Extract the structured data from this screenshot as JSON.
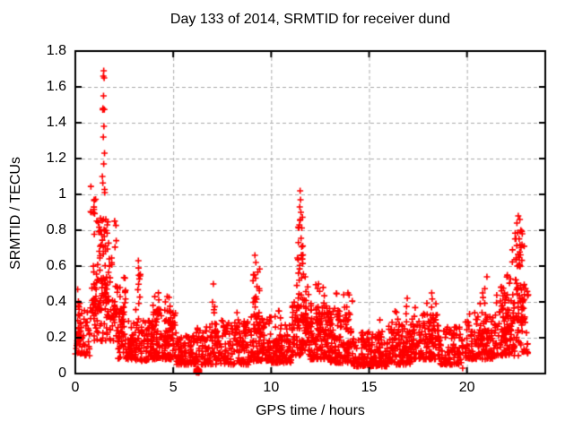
{
  "chart_data": {
    "type": "scatter",
    "title": "Day 133 of 2014, SRMTID for receiver dund",
    "xlabel": "GPS time / hours",
    "ylabel": "SRMTID / TECUs",
    "xlim": [
      0,
      24
    ],
    "ylim": [
      0,
      1.8
    ],
    "xticks": [
      0,
      5,
      10,
      15,
      20
    ],
    "yticks": [
      0,
      0.2,
      0.4,
      0.6,
      0.8,
      1,
      1.2,
      1.4,
      1.6,
      1.8
    ],
    "grid": {
      "show": true,
      "color": "#aaaaaa",
      "dash": [
        4,
        3
      ]
    },
    "marker": {
      "shape": "plus",
      "color": "#ff0000",
      "size": 7,
      "stroke": 1.6
    },
    "legend": "none",
    "series_name": "SRMTID",
    "clusters": [
      [
        0.0,
        0.75,
        0.1,
        0.38,
        55,
        1.6
      ],
      [
        0.05,
        0.3,
        0.15,
        0.47,
        12,
        1.2
      ],
      [
        0.75,
        2.15,
        0.18,
        0.5,
        55,
        1.5
      ],
      [
        2.15,
        3.1,
        0.08,
        0.38,
        85,
        1.8
      ],
      [
        3.1,
        3.95,
        0.07,
        0.3,
        75,
        1.8
      ],
      [
        3.95,
        5.15,
        0.08,
        0.36,
        105,
        1.8
      ],
      [
        5.15,
        6.1,
        0.05,
        0.22,
        85,
        1.8
      ],
      [
        6.1,
        7.3,
        0.05,
        0.26,
        95,
        1.8
      ],
      [
        7.3,
        8.9,
        0.05,
        0.3,
        130,
        1.8
      ],
      [
        8.9,
        10.0,
        0.07,
        0.32,
        100,
        1.8
      ],
      [
        10.0,
        11.05,
        0.06,
        0.28,
        100,
        1.8
      ],
      [
        11.05,
        12.0,
        0.1,
        0.42,
        90,
        1.7
      ],
      [
        12.0,
        13.0,
        0.08,
        0.38,
        105,
        1.8
      ],
      [
        13.0,
        14.2,
        0.06,
        0.34,
        105,
        1.8
      ],
      [
        14.2,
        16.0,
        0.04,
        0.24,
        150,
        1.8
      ],
      [
        16.0,
        17.2,
        0.05,
        0.3,
        110,
        1.8
      ],
      [
        17.2,
        18.6,
        0.08,
        0.34,
        120,
        1.8
      ],
      [
        18.6,
        19.9,
        0.05,
        0.26,
        95,
        1.8
      ],
      [
        19.9,
        21.3,
        0.08,
        0.34,
        120,
        1.8
      ],
      [
        21.3,
        22.25,
        0.1,
        0.44,
        85,
        1.7
      ],
      [
        22.25,
        23.15,
        0.1,
        0.48,
        65,
        1.5
      ],
      [
        0.78,
        1.38,
        0.35,
        1.12,
        60,
        1.9
      ],
      [
        1.36,
        1.56,
        0.45,
        1.5,
        22,
        1.6
      ],
      [
        1.5,
        2.1,
        0.3,
        0.92,
        48,
        1.9
      ],
      [
        2.1,
        2.6,
        0.18,
        0.55,
        26,
        1.8
      ],
      [
        3.17,
        3.32,
        0.28,
        0.6,
        11,
        1.3
      ],
      [
        3.9,
        4.45,
        0.15,
        0.48,
        20,
        1.5
      ],
      [
        4.5,
        5.05,
        0.15,
        0.45,
        26,
        1.6
      ],
      [
        6.17,
        6.33,
        0.004,
        0.028,
        32,
        1.0
      ],
      [
        6.95,
        7.25,
        0.18,
        0.46,
        13,
        1.4
      ],
      [
        8.2,
        8.55,
        0.15,
        0.35,
        10,
        1.4
      ],
      [
        9.05,
        9.45,
        0.22,
        0.6,
        24,
        1.5
      ],
      [
        10.2,
        10.55,
        0.12,
        0.35,
        12,
        1.5
      ],
      [
        11.3,
        11.68,
        0.3,
        0.68,
        30,
        1.5
      ],
      [
        11.38,
        11.62,
        0.7,
        0.88,
        9,
        1.0
      ],
      [
        11.7,
        12.1,
        0.22,
        0.55,
        18,
        1.6
      ],
      [
        12.2,
        12.85,
        0.18,
        0.5,
        26,
        1.6
      ],
      [
        13.0,
        13.5,
        0.18,
        0.45,
        15,
        1.5
      ],
      [
        13.7,
        14.15,
        0.15,
        0.45,
        16,
        1.6
      ],
      [
        15.3,
        15.7,
        0.12,
        0.3,
        8,
        1.4
      ],
      [
        16.1,
        16.55,
        0.15,
        0.38,
        12,
        1.5
      ],
      [
        16.85,
        17.45,
        0.15,
        0.4,
        14,
        1.5
      ],
      [
        17.9,
        18.5,
        0.15,
        0.45,
        18,
        1.6
      ],
      [
        20.5,
        21.25,
        0.15,
        0.5,
        22,
        1.7
      ],
      [
        21.7,
        22.3,
        0.2,
        0.62,
        26,
        1.6
      ],
      [
        22.3,
        22.95,
        0.28,
        0.8,
        40,
        1.4
      ],
      [
        22.45,
        22.85,
        0.55,
        0.82,
        14,
        1.0
      ]
    ],
    "points": [
      [
        1.45,
        1.69
      ],
      [
        1.43,
        1.66
      ],
      [
        1.47,
        1.65
      ],
      [
        1.44,
        1.55
      ],
      [
        1.41,
        1.48
      ],
      [
        1.46,
        1.38
      ],
      [
        1.43,
        1.32
      ],
      [
        1.49,
        1.23
      ],
      [
        1.45,
        1.17
      ],
      [
        1.38,
        1.1
      ],
      [
        11.48,
        1.02
      ],
      [
        11.5,
        0.97
      ],
      [
        11.46,
        0.93
      ],
      [
        11.52,
        0.9
      ],
      [
        11.49,
        0.86
      ],
      [
        11.44,
        0.83
      ],
      [
        3.22,
        0.63
      ],
      [
        9.17,
        0.66
      ],
      [
        9.22,
        0.62
      ],
      [
        9.13,
        0.55
      ],
      [
        22.62,
        0.88
      ],
      [
        22.7,
        0.86
      ],
      [
        22.55,
        0.84
      ],
      [
        22.75,
        0.8
      ],
      [
        19.78,
        0.03
      ],
      [
        21.02,
        0.54
      ],
      [
        13.92,
        0.45
      ],
      [
        7.05,
        0.5
      ],
      [
        0.12,
        0.47
      ],
      [
        12.42,
        0.5
      ],
      [
        16.95,
        0.42
      ],
      [
        18.2,
        0.45
      ],
      [
        10.38,
        0.35
      ],
      [
        20.8,
        0.45
      ]
    ]
  }
}
